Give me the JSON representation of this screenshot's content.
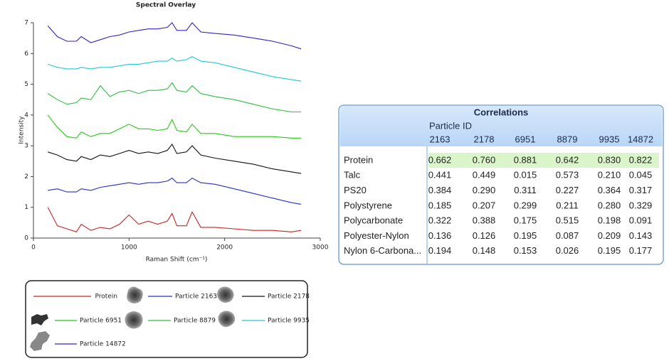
{
  "chart_data": {
    "type": "line",
    "title": "Spectral Overlay",
    "x_label": "Raman Shift (cm⁻¹)",
    "y_label": "Intensity",
    "x": [
      150,
      250,
      350,
      450,
      500,
      600,
      700,
      800,
      900,
      1000,
      1100,
      1200,
      1300,
      1400,
      1450,
      1500,
      1600,
      1660,
      1750,
      1900,
      2100,
      2300,
      2500,
      2700,
      2800
    ],
    "series": [
      {
        "name": "Protein",
        "color": "#cc2020",
        "values": [
          1.0,
          0.4,
          0.3,
          0.2,
          0.45,
          0.25,
          0.35,
          0.3,
          0.45,
          0.75,
          0.45,
          0.55,
          0.45,
          0.55,
          0.8,
          0.4,
          0.4,
          0.85,
          0.35,
          0.35,
          0.3,
          0.25,
          0.25,
          0.2,
          0.25
        ]
      },
      {
        "name": "Particle 2163",
        "color": "#2430c8",
        "values": [
          1.55,
          1.6,
          1.5,
          1.5,
          1.6,
          1.55,
          1.65,
          1.7,
          1.75,
          1.8,
          1.75,
          1.8,
          1.8,
          1.85,
          1.95,
          1.8,
          1.8,
          1.95,
          1.8,
          1.75,
          1.6,
          1.45,
          1.3,
          1.15,
          1.1
        ]
      },
      {
        "name": "Particle 2178",
        "color": "#111111",
        "values": [
          2.8,
          2.7,
          2.55,
          2.5,
          2.65,
          2.55,
          2.7,
          2.65,
          2.75,
          2.85,
          2.75,
          2.8,
          2.75,
          2.85,
          3.05,
          2.75,
          2.8,
          3.0,
          2.7,
          2.6,
          2.5,
          2.4,
          2.25,
          2.15,
          2.1
        ]
      },
      {
        "name": "Particle 6951",
        "color": "#22cc10",
        "values": [
          4.0,
          3.6,
          3.3,
          3.25,
          3.45,
          3.3,
          3.4,
          3.4,
          3.55,
          3.7,
          3.55,
          3.55,
          3.5,
          3.55,
          3.85,
          3.5,
          3.45,
          3.7,
          3.4,
          3.4,
          3.3,
          3.3,
          3.3,
          3.25,
          3.25
        ]
      },
      {
        "name": "Particle 8879",
        "color": "#30c040",
        "values": [
          4.7,
          4.5,
          4.35,
          4.4,
          4.55,
          4.5,
          4.95,
          4.6,
          4.75,
          4.8,
          4.7,
          4.8,
          4.8,
          4.85,
          5.05,
          4.8,
          4.75,
          4.95,
          4.7,
          4.6,
          4.5,
          4.35,
          4.2,
          4.1,
          4.1
        ]
      },
      {
        "name": "Particle 9935",
        "color": "#20c8d0",
        "values": [
          5.65,
          5.55,
          5.5,
          5.5,
          5.55,
          5.5,
          5.55,
          5.55,
          5.6,
          5.65,
          5.65,
          5.7,
          5.75,
          5.75,
          5.85,
          5.75,
          5.8,
          5.9,
          5.75,
          5.7,
          5.55,
          5.4,
          5.25,
          5.15,
          5.1
        ]
      },
      {
        "name": "Particle 14872",
        "color": "#3a20c0",
        "values": [
          6.9,
          6.55,
          6.4,
          6.4,
          6.55,
          6.35,
          6.45,
          6.55,
          6.6,
          6.7,
          6.75,
          6.8,
          6.8,
          6.85,
          7.0,
          6.75,
          6.75,
          7.0,
          6.7,
          6.65,
          6.6,
          6.5,
          6.4,
          6.25,
          6.15
        ]
      }
    ],
    "xlim": [
      0,
      3000
    ],
    "xticks": [
      0,
      1000,
      2000,
      3000
    ],
    "ylim": [
      0,
      7
    ],
    "yticks": [
      0,
      1,
      2,
      3,
      4,
      5,
      6,
      7
    ],
    "grid": false
  },
  "table": {
    "title": "Correlations",
    "column_group": "Particle ID",
    "columns": [
      "2163",
      "2178",
      "6951",
      "8879",
      "9935",
      "14872"
    ],
    "rows": [
      {
        "label": "Protein",
        "cells": [
          "0.662",
          "0.760",
          "0.881",
          "0.642",
          "0.830",
          "0.822"
        ]
      },
      {
        "label": "Talc",
        "cells": [
          "0.441",
          "0.449",
          "0.015",
          "0.573",
          "0.210",
          "0.045"
        ]
      },
      {
        "label": "PS20",
        "cells": [
          "0.384",
          "0.290",
          "0.311",
          "0.227",
          "0.364",
          "0.317"
        ]
      },
      {
        "label": "Polystyrene",
        "cells": [
          "0.185",
          "0.207",
          "0.299",
          "0.211",
          "0.280",
          "0.329"
        ]
      },
      {
        "label": "Polycarbonate",
        "cells": [
          "0.322",
          "0.388",
          "0.175",
          "0.515",
          "0.198",
          "0.091"
        ]
      },
      {
        "label": "Polyester-Nylon",
        "cells": [
          "0.136",
          "0.126",
          "0.195",
          "0.087",
          "0.209",
          "0.143"
        ]
      },
      {
        "label": "Nylon 6-Carbona...",
        "cells": [
          "0.194",
          "0.148",
          "0.153",
          "0.026",
          "0.195",
          "0.177"
        ]
      }
    ]
  }
}
